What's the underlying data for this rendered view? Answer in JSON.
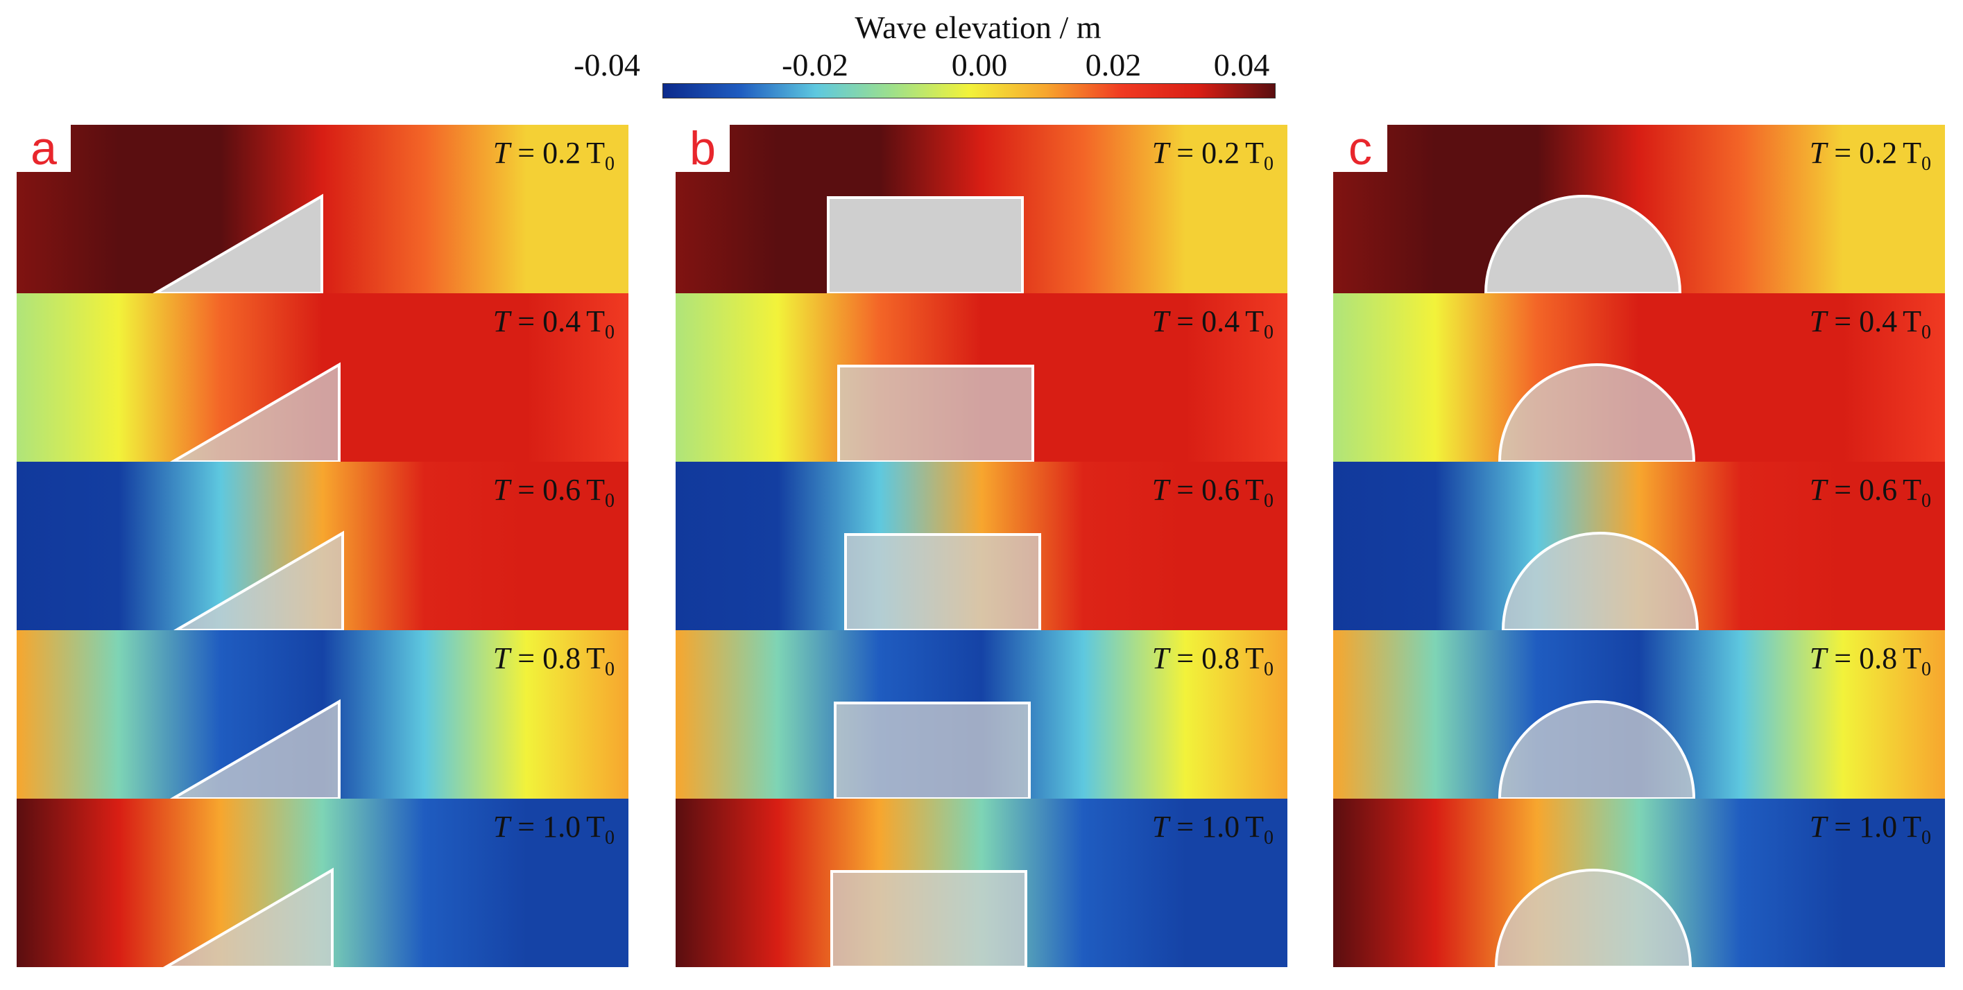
{
  "colorbar": {
    "title": "Wave elevation / m",
    "ticks": [
      "-0.04",
      "-0.02",
      "0.00",
      "0.02",
      "0.04"
    ],
    "tick_values": [
      -0.04,
      -0.02,
      0.0,
      0.02,
      0.04
    ],
    "colors": [
      "#0b2a8c",
      "#1f5cc0",
      "#5ec8df",
      "#9ee08a",
      "#f2f23a",
      "#f7a62e",
      "#f03a22",
      "#d81e14",
      "#5a0e10"
    ]
  },
  "panels": [
    {
      "letter": "a",
      "shape": "triangle"
    },
    {
      "letter": "b",
      "shape": "rectangle"
    },
    {
      "letter": "c",
      "shape": "semicircle"
    }
  ],
  "snapshots": [
    {
      "var": "T",
      "eq": " = ",
      "coef": "0.2",
      "unit": "T",
      "sub": "0",
      "profile": [
        0.037,
        0.04,
        0.04,
        0.03,
        0.016,
        0.0045,
        0.0045
      ]
    },
    {
      "var": "T",
      "eq": " = ",
      "coef": "0.4",
      "unit": "T",
      "sub": "0",
      "profile": [
        -0.008,
        0.0,
        0.016,
        0.03,
        0.03,
        0.03,
        0.02
      ]
    },
    {
      "var": "T",
      "eq": " = ",
      "coef": "0.6",
      "unit": "T",
      "sub": "0",
      "profile": [
        -0.037,
        -0.036,
        -0.02,
        0.01,
        0.028,
        0.03,
        0.03
      ]
    },
    {
      "var": "T",
      "eq": " = ",
      "coef": "0.8",
      "unit": "T",
      "sub": "0",
      "profile": [
        0.01,
        -0.015,
        -0.03,
        -0.035,
        -0.02,
        0.0,
        0.01
      ]
    },
    {
      "var": "T",
      "eq": " = ",
      "coef": "1.0",
      "unit": "T",
      "sub": "0",
      "profile": [
        0.04,
        0.03,
        0.01,
        -0.015,
        -0.03,
        -0.035,
        -0.035
      ]
    }
  ]
}
